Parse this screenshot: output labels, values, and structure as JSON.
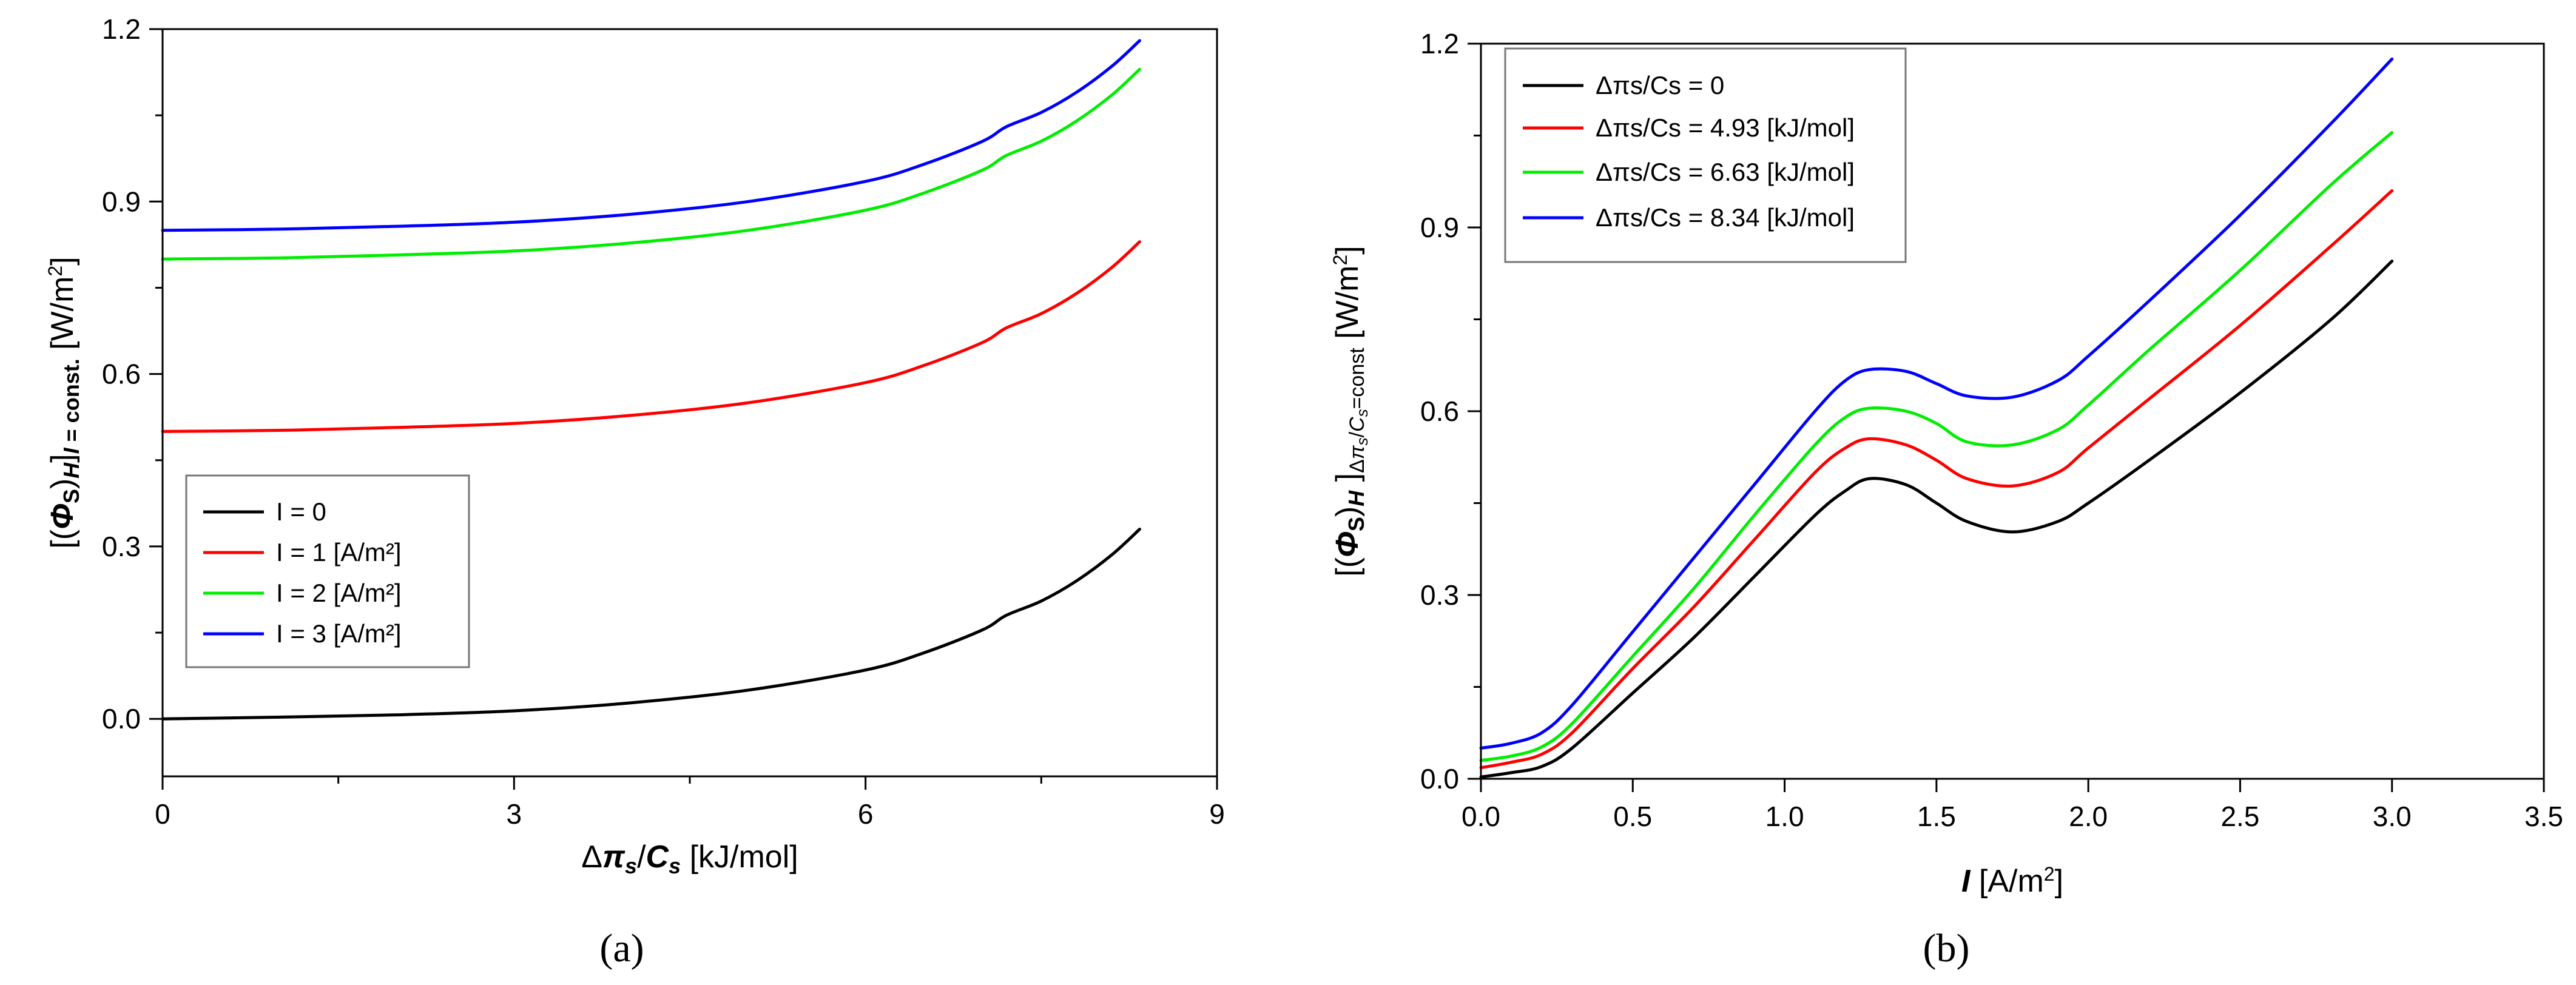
{
  "chart_data": [
    {
      "type": "line",
      "panel_label": "(a)",
      "xlabel": "Δπs/Cs [kJ/mol]",
      "ylabel": "[(Φs)H]I = const. [W/m²]",
      "xlim": [
        0,
        9
      ],
      "ylim": [
        -0.1,
        1.2
      ],
      "xticks": [
        0,
        3,
        6,
        9
      ],
      "xtick_labels": [
        "0",
        "3",
        "6",
        "9"
      ],
      "yticks": [
        0.0,
        0.3,
        0.6,
        0.9,
        1.2
      ],
      "ytick_labels": [
        "0.0",
        "0.3",
        "0.6",
        "0.9",
        "1.2"
      ],
      "legend_position": "lower-left",
      "series": [
        {
          "name": "I = 0",
          "color": "#000000",
          "x": [
            0,
            1,
            2,
            3,
            4,
            5,
            6,
            6.5,
            7,
            7.2,
            7.5,
            7.8,
            8.1,
            8.34
          ],
          "y": [
            0.0,
            0.003,
            0.007,
            0.014,
            0.028,
            0.05,
            0.085,
            0.115,
            0.155,
            0.18,
            0.205,
            0.24,
            0.285,
            0.33
          ]
        },
        {
          "name": "I = 1 [A/m²]",
          "color": "#ff0000",
          "x": [
            0,
            1,
            2,
            3,
            4,
            5,
            6,
            6.5,
            7,
            7.2,
            7.5,
            7.8,
            8.1,
            8.34
          ],
          "y": [
            0.5,
            0.502,
            0.507,
            0.514,
            0.528,
            0.55,
            0.585,
            0.615,
            0.655,
            0.68,
            0.705,
            0.74,
            0.785,
            0.83
          ]
        },
        {
          "name": "I = 2 [A/m²]",
          "color": "#00ee00",
          "x": [
            0,
            1,
            2,
            3,
            4,
            5,
            6,
            6.5,
            7,
            7.2,
            7.5,
            7.8,
            8.1,
            8.34
          ],
          "y": [
            0.8,
            0.802,
            0.807,
            0.814,
            0.828,
            0.85,
            0.885,
            0.915,
            0.955,
            0.98,
            1.005,
            1.04,
            1.085,
            1.13
          ]
        },
        {
          "name": "I = 3 [A/m²]",
          "color": "#0000ff",
          "x": [
            0,
            1,
            2,
            3,
            4,
            5,
            6,
            6.5,
            7,
            7.2,
            7.5,
            7.8,
            8.1,
            8.34
          ],
          "y": [
            0.85,
            0.852,
            0.857,
            0.864,
            0.878,
            0.9,
            0.935,
            0.965,
            1.005,
            1.03,
            1.055,
            1.09,
            1.135,
            1.18
          ]
        }
      ]
    },
    {
      "type": "line",
      "panel_label": "(b)",
      "xlabel": "I [A/m²]",
      "ylabel": "[(Φs)H]Δπs/Cs=const [W/m²]",
      "xlim": [
        0,
        3.5
      ],
      "ylim": [
        0,
        1.2
      ],
      "xticks": [
        0,
        0.5,
        1.0,
        1.5,
        2.0,
        2.5,
        3.0,
        3.5
      ],
      "xtick_labels": [
        "0.0",
        "0.5",
        "1.0",
        "1.5",
        "2.0",
        "2.5",
        "3.0",
        "3.5"
      ],
      "yticks": [
        0.0,
        0.3,
        0.6,
        0.9,
        1.2
      ],
      "ytick_labels": [
        "0.0",
        "0.3",
        "0.6",
        "0.9",
        "1.2"
      ],
      "legend_position": "top-left",
      "series": [
        {
          "name": "Δπs/Cs = 0",
          "color": "#000000",
          "x": [
            0,
            0.1,
            0.2,
            0.3,
            0.5,
            0.7,
            0.9,
            1.1,
            1.2,
            1.28,
            1.4,
            1.5,
            1.6,
            1.75,
            1.9,
            2.0,
            2.2,
            2.5,
            2.8,
            3.0
          ],
          "y": [
            0.003,
            0.01,
            0.02,
            0.05,
            0.14,
            0.23,
            0.33,
            0.43,
            0.47,
            0.49,
            0.48,
            0.45,
            0.42,
            0.403,
            0.42,
            0.45,
            0.52,
            0.63,
            0.75,
            0.845
          ]
        },
        {
          "name": "Δπs/Cs = 4.93 [kJ/mol]",
          "color": "#ff0000",
          "x": [
            0,
            0.1,
            0.2,
            0.3,
            0.5,
            0.7,
            0.9,
            1.1,
            1.2,
            1.28,
            1.4,
            1.5,
            1.6,
            1.75,
            1.9,
            2.0,
            2.2,
            2.5,
            2.8,
            3.0
          ],
          "y": [
            0.018,
            0.027,
            0.04,
            0.075,
            0.18,
            0.28,
            0.39,
            0.5,
            0.54,
            0.555,
            0.545,
            0.52,
            0.49,
            0.478,
            0.5,
            0.54,
            0.62,
            0.74,
            0.87,
            0.96
          ]
        },
        {
          "name": "Δπs/Cs = 6.63 [kJ/mol]",
          "color": "#00ee00",
          "x": [
            0,
            0.1,
            0.2,
            0.3,
            0.5,
            0.7,
            0.9,
            1.1,
            1.2,
            1.28,
            1.4,
            1.5,
            1.6,
            1.75,
            1.9,
            2.0,
            2.2,
            2.5,
            2.8,
            3.0
          ],
          "y": [
            0.03,
            0.037,
            0.052,
            0.09,
            0.2,
            0.31,
            0.43,
            0.545,
            0.59,
            0.605,
            0.6,
            0.58,
            0.55,
            0.545,
            0.57,
            0.61,
            0.7,
            0.83,
            0.97,
            1.055
          ]
        },
        {
          "name": "Δπs/Cs = 8.34 [kJ/mol]",
          "color": "#0000ff",
          "x": [
            0,
            0.1,
            0.2,
            0.3,
            0.5,
            0.7,
            0.9,
            1.1,
            1.2,
            1.28,
            1.4,
            1.5,
            1.6,
            1.75,
            1.9,
            2.0,
            2.2,
            2.5,
            2.8,
            3.0
          ],
          "y": [
            0.05,
            0.058,
            0.075,
            0.12,
            0.24,
            0.36,
            0.48,
            0.6,
            0.65,
            0.668,
            0.665,
            0.645,
            0.625,
            0.623,
            0.65,
            0.69,
            0.78,
            0.92,
            1.07,
            1.175
          ]
        }
      ]
    }
  ]
}
